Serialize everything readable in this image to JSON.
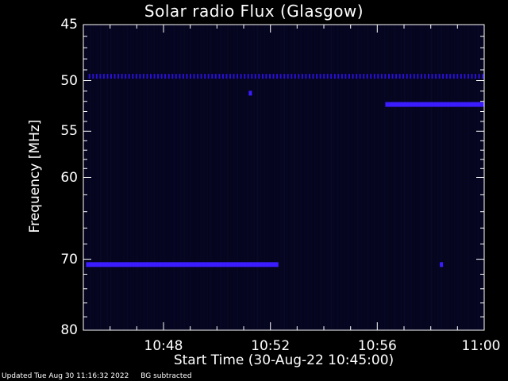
{
  "chart_data": {
    "type": "heatmap",
    "title": "Solar radio Flux (Glasgow)",
    "xlabel": "Start Time (30-Aug-22 10:45:00)",
    "ylabel": "Frequency [MHz]",
    "x_start": "10:45:00",
    "x_end": "11:00:00",
    "xlim_minutes": [
      0,
      15
    ],
    "ylim": [
      45,
      80
    ],
    "y_scale": "log",
    "y_reversed": true,
    "y_ticks": [
      45,
      50,
      55,
      60,
      70,
      80
    ],
    "x_ticks": [
      {
        "label": "10:48",
        "minutes": 3
      },
      {
        "label": "10:52",
        "minutes": 7
      },
      {
        "label": "10:56",
        "minutes": 11
      },
      {
        "label": "11:00",
        "minutes": 15
      }
    ],
    "colors": {
      "background": "#000000",
      "plot_bg": "#05051e",
      "signal": "#2a10d8",
      "strong_signal": "#3b1cff"
    },
    "features": [
      {
        "name": "",
        "type": "dashed_line",
        "freq_mhz": 49.6,
        "t_start_min": 0.2,
        "t_end_min": 15
      },
      {
        "name": "",
        "type": "band",
        "freq_mhz": 52.3,
        "t_start_min": 11.3,
        "t_end_min": 15
      },
      {
        "name": "",
        "type": "band",
        "freq_mhz": 70.7,
        "t_start_min": 0.1,
        "t_end_min": 7.3
      },
      {
        "name": "",
        "type": "dot",
        "freq_mhz": 51.2,
        "t_min": 6.25
      },
      {
        "name": "",
        "type": "dot",
        "freq_mhz": 70.7,
        "t_min": 13.4
      }
    ]
  },
  "footer": {
    "updated": "Updated Tue Aug 30 11:16:32 2022",
    "note": "BG subtracted"
  }
}
